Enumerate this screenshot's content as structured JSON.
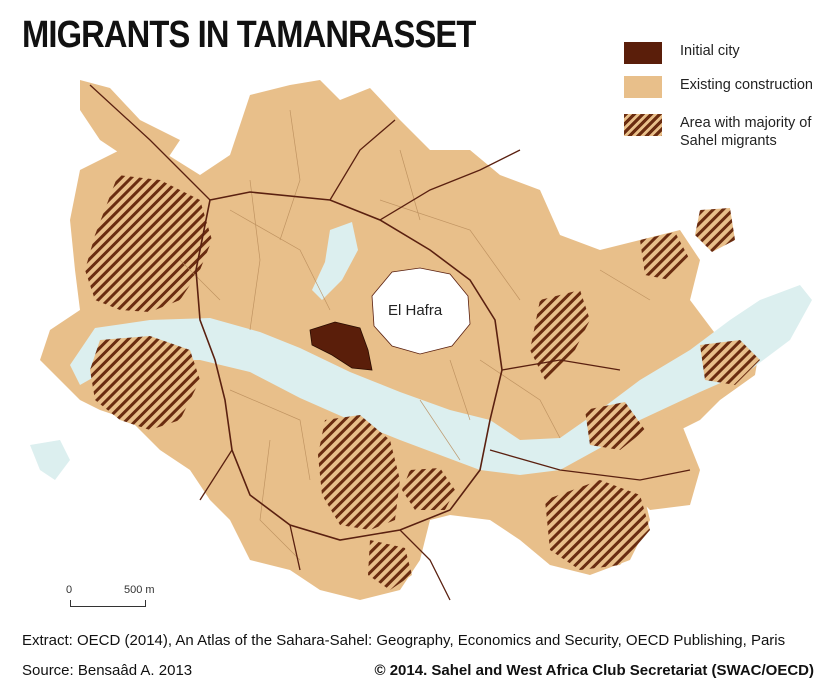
{
  "title": "MIGRANTS IN TAMANRASSET",
  "legend": {
    "items": [
      {
        "label": "Initial city",
        "color": "#5a1e0a"
      },
      {
        "label": "Existing construction",
        "color": "#e8bf8a"
      },
      {
        "label": "Area with majority of Sahel migrants",
        "color": "#6a2c10"
      }
    ]
  },
  "map": {
    "place_label": "El Hafra",
    "colors": {
      "construction": "#e8bf8a",
      "river": "#dcefef",
      "road": "#5a2010",
      "initial": "#5a1e0a",
      "hatch": "#6a2c10"
    }
  },
  "scale": {
    "zero": "0",
    "distance": "500 m"
  },
  "footer": {
    "extract": "Extract: OECD (2014), An Atlas of the Sahara-Sahel: Geography, Economics  and Security, OECD Publishing, Paris",
    "source": "Source: Bensaâd A. 2013",
    "copyright": "© 2014. Sahel and West Africa Club Secretariat (SWAC/OECD)"
  }
}
